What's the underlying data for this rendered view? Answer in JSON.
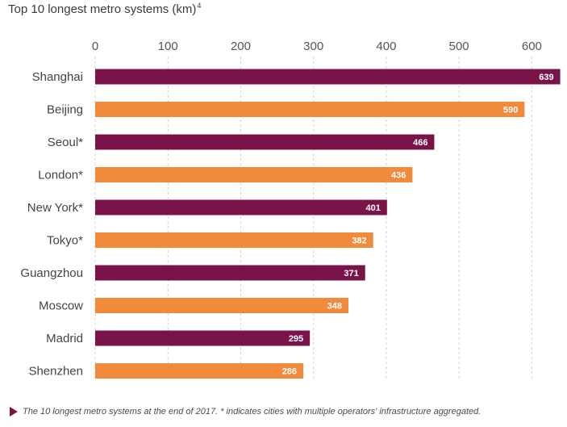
{
  "title": "Top 10 longest metro systems (km)",
  "title_sup": "4",
  "footnote": "The 10 longest metro systems at the end of 2017. * indicates cities with multiple operators' infrastructure aggregated.",
  "colors": {
    "primary": "#7a1448",
    "secondary": "#f28a3c"
  },
  "chart_data": {
    "type": "bar",
    "orientation": "horizontal",
    "title": "Top 10 longest metro systems (km)",
    "categories": [
      "Shanghai",
      "Beijing",
      "Seoul*",
      "London*",
      "New York*",
      "Tokyo*",
      "Guangzhou",
      "Moscow",
      "Madrid",
      "Shenzhen"
    ],
    "values": [
      639,
      590,
      466,
      436,
      401,
      382,
      371,
      348,
      295,
      286
    ],
    "xlim": [
      0,
      640
    ],
    "xticks": [
      0,
      100,
      200,
      300,
      400,
      500,
      600
    ],
    "grid": true,
    "x_axis_position": "top",
    "bar_colors": [
      "#7a1448",
      "#f28a3c",
      "#7a1448",
      "#f28a3c",
      "#7a1448",
      "#f28a3c",
      "#7a1448",
      "#f28a3c",
      "#7a1448",
      "#f28a3c"
    ]
  }
}
